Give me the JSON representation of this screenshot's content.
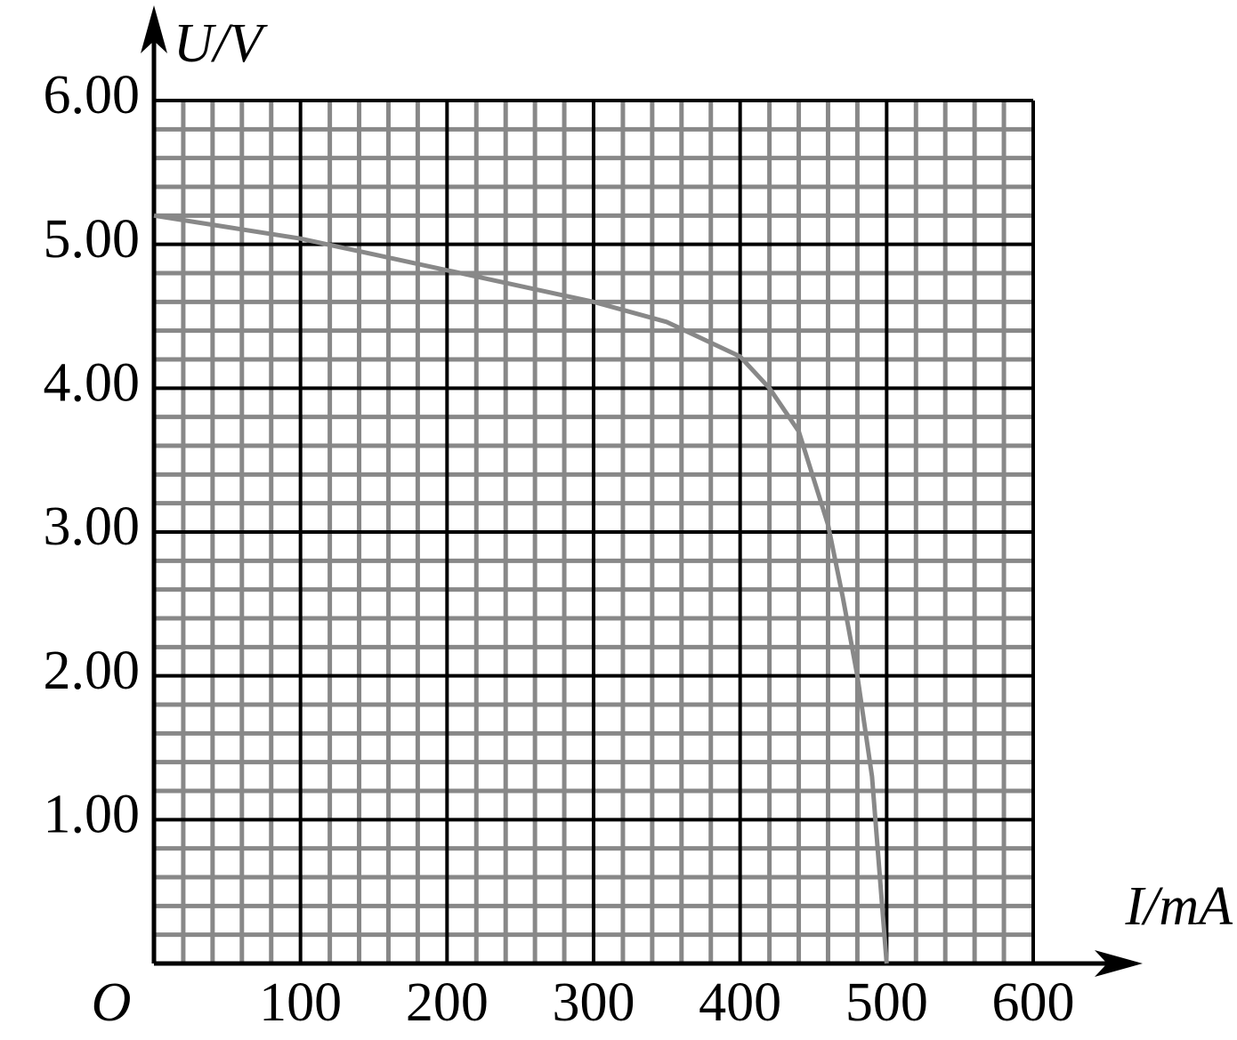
{
  "chart_data": {
    "type": "line",
    "x_label": "I/mA",
    "y_label": "U/V",
    "origin_label": "O",
    "x": [
      0,
      50,
      100,
      150,
      200,
      250,
      300,
      350,
      400,
      420,
      440,
      460,
      470,
      480,
      490,
      500
    ],
    "series": [
      {
        "color": "#888888",
        "values": [
          5.2,
          5.12,
          5.04,
          4.93,
          4.82,
          4.71,
          4.6,
          4.46,
          4.22,
          4.0,
          3.7,
          3.05,
          2.55,
          2.0,
          1.3,
          0
        ]
      }
    ],
    "xlim": [
      0,
      600
    ],
    "ylim": [
      0,
      6
    ],
    "xticks": [
      100,
      200,
      300,
      400,
      500,
      600
    ],
    "yticks": [
      {
        "value": 1,
        "label": "1.00"
      },
      {
        "value": 2,
        "label": "2.00"
      },
      {
        "value": 3,
        "label": "3.00"
      },
      {
        "value": 4,
        "label": "4.00"
      },
      {
        "value": 5,
        "label": "5.00"
      },
      {
        "value": 6,
        "label": "6.00"
      }
    ],
    "grid": true,
    "minor_grid": true,
    "grid_color": "#000000",
    "minor_grid_color": "#888888"
  }
}
